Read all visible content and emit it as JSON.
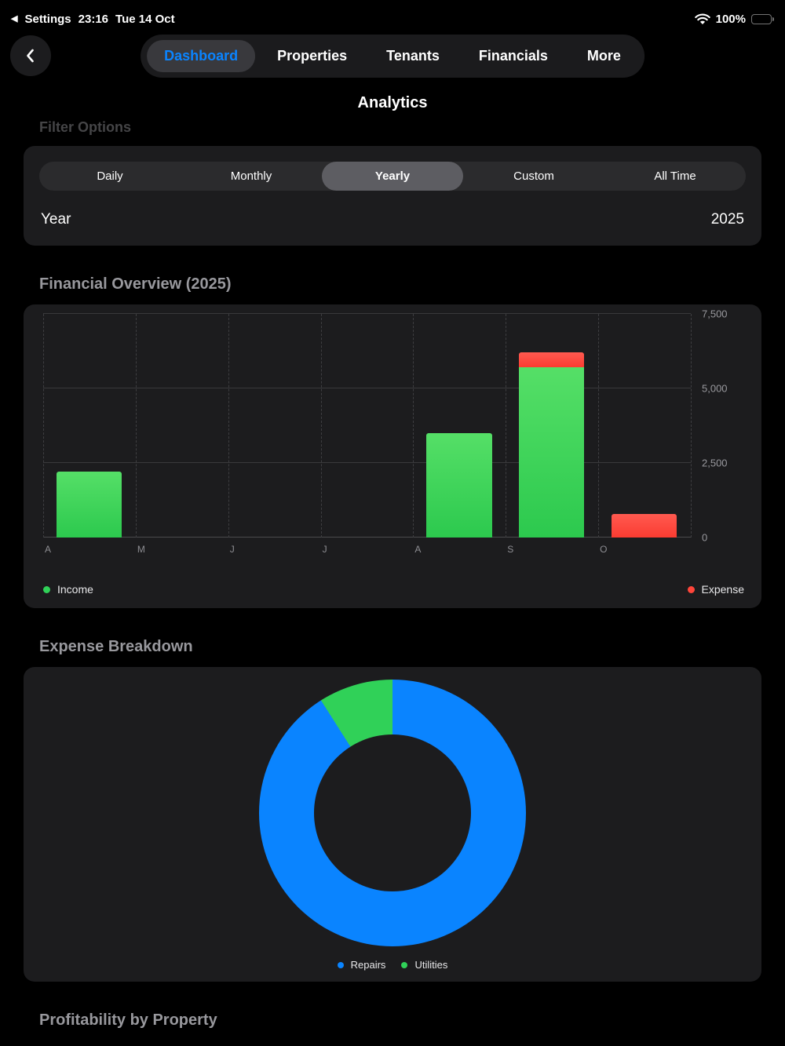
{
  "status_bar": {
    "back_app": "Settings",
    "time": "23:16",
    "date": "Tue 14 Oct",
    "battery": "100%"
  },
  "nav": {
    "tabs": [
      {
        "label": "Dashboard",
        "selected": true
      },
      {
        "label": "Properties",
        "selected": false
      },
      {
        "label": "Tenants",
        "selected": false
      },
      {
        "label": "Financials",
        "selected": false
      },
      {
        "label": "More",
        "selected": false
      }
    ]
  },
  "page": {
    "title": "Analytics",
    "filter_section_label": "Filter Options"
  },
  "filters": {
    "segments": [
      "Daily",
      "Monthly",
      "Yearly",
      "Custom",
      "All Time"
    ],
    "selected_segment": "Yearly",
    "year_label": "Year",
    "year_value": "2025"
  },
  "sections": {
    "financial_overview": "Financial Overview (2025)",
    "expense_breakdown": "Expense Breakdown",
    "profitability": "Profitability by Property"
  },
  "colors": {
    "accent_blue": "#0a84ff",
    "income_green": "#30d158",
    "expense_red": "#ff453a",
    "card_bg": "#1c1c1e"
  },
  "chart_data": [
    {
      "type": "bar",
      "title": "Financial Overview (2025)",
      "stacked": true,
      "categories": [
        "A",
        "M",
        "J",
        "J",
        "A",
        "S",
        "O"
      ],
      "series": [
        {
          "name": "Income",
          "color": "#30d158",
          "values": [
            2200,
            0,
            0,
            0,
            3500,
            5700,
            0
          ]
        },
        {
          "name": "Expense",
          "color": "#ff453a",
          "values": [
            0,
            0,
            0,
            0,
            0,
            500,
            800
          ]
        }
      ],
      "ylim": [
        0,
        7500
      ],
      "yticks": [
        {
          "label": "0",
          "value": 0
        },
        {
          "label": "2,500",
          "value": 2500
        },
        {
          "label": "5,000",
          "value": 5000
        },
        {
          "label": "7,500",
          "value": 7500
        }
      ],
      "grid": "horizontal solid, vertical dashed",
      "legend_position": "bottom"
    },
    {
      "type": "pie",
      "donut": true,
      "title": "Expense Breakdown",
      "labels": [
        "Repairs",
        "Utilities"
      ],
      "values": [
        91,
        9
      ],
      "colors": [
        "#0a84ff",
        "#30d158"
      ],
      "legend_position": "bottom"
    }
  ]
}
